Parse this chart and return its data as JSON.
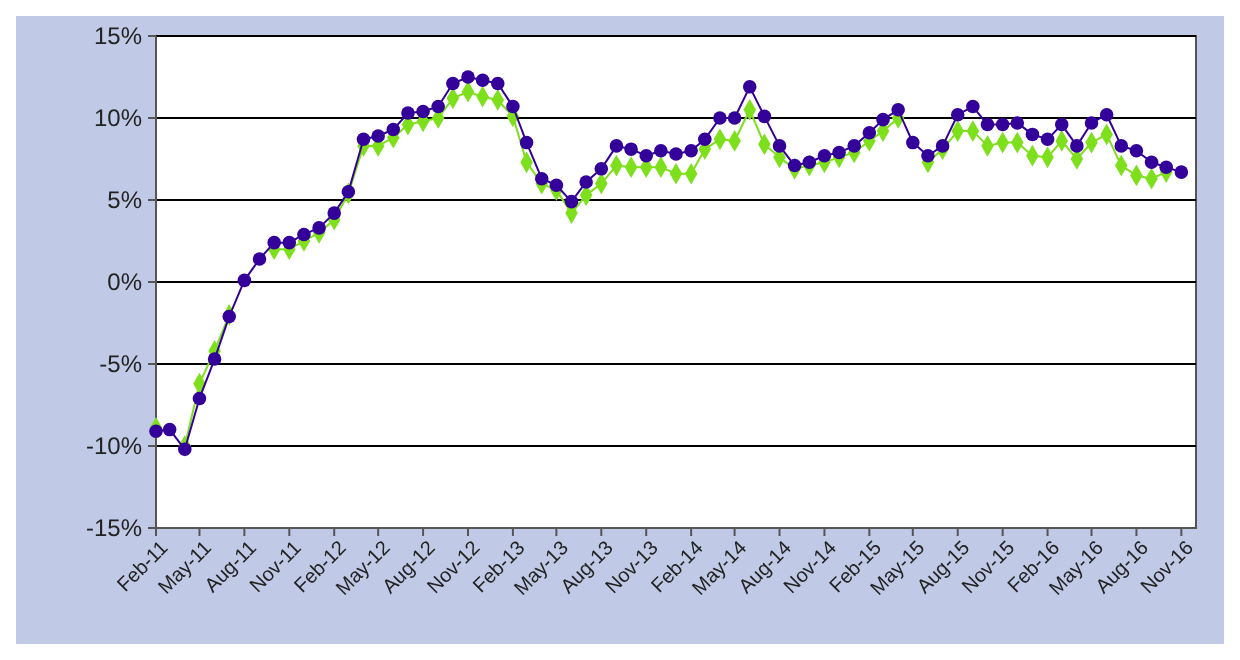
{
  "chart_data": {
    "type": "line",
    "x": [
      "2011-02",
      "2011-03",
      "2011-04",
      "2011-05",
      "2011-06",
      "2011-07",
      "2011-08",
      "2011-09",
      "2011-10",
      "2011-11",
      "2011-12",
      "2012-01",
      "2012-02",
      "2012-03",
      "2012-04",
      "2012-05",
      "2012-06",
      "2012-07",
      "2012-08",
      "2012-09",
      "2012-10",
      "2012-11",
      "2012-12",
      "2013-01",
      "2013-02",
      "2013-03",
      "2013-04",
      "2013-05",
      "2013-06",
      "2013-07",
      "2013-08",
      "2013-09",
      "2013-10",
      "2013-11",
      "2013-12",
      "2014-01",
      "2014-02",
      "2014-03",
      "2014-04",
      "2014-05",
      "2014-06",
      "2014-07",
      "2014-08",
      "2014-09",
      "2014-10",
      "2014-11",
      "2014-12",
      "2015-01",
      "2015-02",
      "2015-03",
      "2015-04",
      "2015-05",
      "2015-06",
      "2015-07",
      "2015-08",
      "2015-09",
      "2015-10",
      "2015-11",
      "2015-12",
      "2016-01",
      "2016-02",
      "2016-03",
      "2016-04",
      "2016-05",
      "2016-06",
      "2016-07",
      "2016-08",
      "2016-09",
      "2016-10",
      "2016-11"
    ],
    "series": [
      {
        "color": "#7ee01c",
        "marker": "diamond",
        "values": [
          -8.9,
          null,
          -10.0,
          -6.2,
          -4.2,
          -2.0,
          null,
          null,
          2.0,
          2.0,
          2.5,
          3.0,
          3.8,
          5.4,
          8.3,
          8.3,
          8.8,
          9.6,
          9.8,
          10.0,
          11.2,
          11.6,
          11.3,
          11.1,
          10.1,
          7.3,
          6.0,
          5.6,
          4.2,
          5.3,
          6.0,
          7.1,
          7.0,
          7.0,
          7.0,
          6.6,
          6.6,
          8.1,
          8.7,
          8.6,
          10.5,
          8.4,
          7.6,
          6.9,
          7.1,
          7.3,
          7.6,
          7.9,
          8.6,
          9.2,
          10.0,
          null,
          7.3,
          8.1,
          9.2,
          9.2,
          8.3,
          8.5,
          8.5,
          7.7,
          7.6,
          8.6,
          7.5,
          8.5,
          9.0,
          7.1,
          6.5,
          6.3,
          6.7,
          null
        ]
      },
      {
        "color": "#330099",
        "marker": "circle",
        "values": [
          -9.1,
          -9.0,
          -10.2,
          -7.1,
          -4.7,
          -2.1,
          0.1,
          1.4,
          2.4,
          2.4,
          2.9,
          3.3,
          4.2,
          5.5,
          8.7,
          8.9,
          9.3,
          10.3,
          10.4,
          10.7,
          12.1,
          12.5,
          12.3,
          12.1,
          10.7,
          8.5,
          6.3,
          5.9,
          4.9,
          6.1,
          6.9,
          8.3,
          8.1,
          7.7,
          8.0,
          7.8,
          8.0,
          8.7,
          10.0,
          10.0,
          11.9,
          10.1,
          8.3,
          7.1,
          7.3,
          7.7,
          7.9,
          8.3,
          9.1,
          9.9,
          10.5,
          8.5,
          7.7,
          8.3,
          10.2,
          10.7,
          9.6,
          9.6,
          9.7,
          9.0,
          8.7,
          9.6,
          8.3,
          9.7,
          10.2,
          8.3,
          8.0,
          7.3,
          7.0,
          6.7
        ]
      }
    ],
    "xlim": [
      "2011-02",
      "2016-12"
    ],
    "xticks": [
      {
        "value": "2011-02",
        "label": "Feb-11"
      },
      {
        "value": "2011-05",
        "label": "May-11"
      },
      {
        "value": "2011-08",
        "label": "Aug-11"
      },
      {
        "value": "2011-11",
        "label": "Nov-11"
      },
      {
        "value": "2012-02",
        "label": "Feb-12"
      },
      {
        "value": "2012-05",
        "label": "May-12"
      },
      {
        "value": "2012-08",
        "label": "Aug-12"
      },
      {
        "value": "2012-11",
        "label": "Nov-12"
      },
      {
        "value": "2013-02",
        "label": "Feb-13"
      },
      {
        "value": "2013-05",
        "label": "May-13"
      },
      {
        "value": "2013-08",
        "label": "Aug-13"
      },
      {
        "value": "2013-11",
        "label": "Nov-13"
      },
      {
        "value": "2014-02",
        "label": "Feb-14"
      },
      {
        "value": "2014-05",
        "label": "May-14"
      },
      {
        "value": "2014-08",
        "label": "Aug-14"
      },
      {
        "value": "2014-11",
        "label": "Nov-14"
      },
      {
        "value": "2015-02",
        "label": "Feb-15"
      },
      {
        "value": "2015-05",
        "label": "May-15"
      },
      {
        "value": "2015-08",
        "label": "Aug-15"
      },
      {
        "value": "2015-11",
        "label": "Nov-15"
      },
      {
        "value": "2016-02",
        "label": "Feb-16"
      },
      {
        "value": "2016-05",
        "label": "May-16"
      },
      {
        "value": "2016-08",
        "label": "Aug-16"
      },
      {
        "value": "2016-11",
        "label": "Nov-16"
      }
    ],
    "ylim": [
      -15,
      15
    ],
    "yticks": [
      {
        "value": -15,
        "label": "-15%"
      },
      {
        "value": -10,
        "label": "-10%"
      },
      {
        "value": -5,
        "label": "-5%"
      },
      {
        "value": 0,
        "label": "0%"
      },
      {
        "value": 5,
        "label": "5%"
      },
      {
        "value": 10,
        "label": "10%"
      },
      {
        "value": 15,
        "label": "15%"
      }
    ],
    "grid": "y"
  }
}
